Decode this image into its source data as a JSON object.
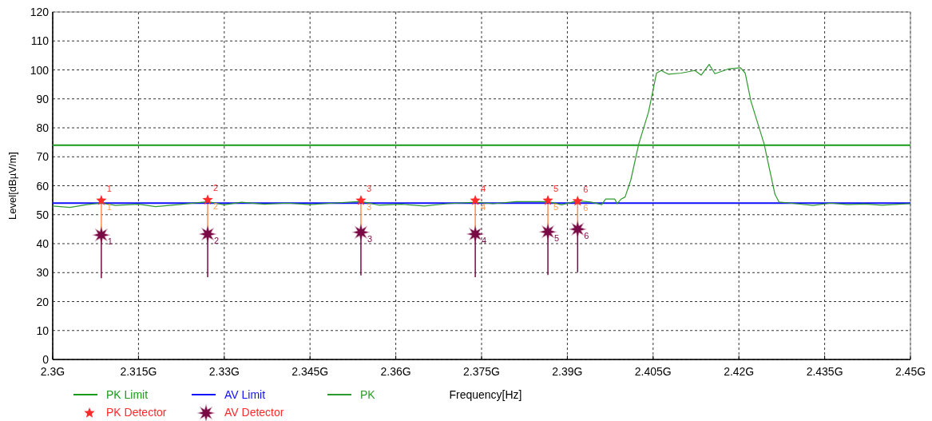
{
  "chart_data": {
    "type": "line",
    "xlabel": "Frequency[Hz]",
    "ylabel": "Level[dBµV/m]",
    "xlim": [
      2.3,
      2.45
    ],
    "ylim": [
      0,
      120
    ],
    "xticks": [
      {
        "value": 2.3,
        "label": "2.3G"
      },
      {
        "value": 2.315,
        "label": "2.315G"
      },
      {
        "value": 2.33,
        "label": "2.33G"
      },
      {
        "value": 2.345,
        "label": "2.345G"
      },
      {
        "value": 2.36,
        "label": "2.36G"
      },
      {
        "value": 2.375,
        "label": "2.375G"
      },
      {
        "value": 2.39,
        "label": "2.39G"
      },
      {
        "value": 2.405,
        "label": "2.405G"
      },
      {
        "value": 2.42,
        "label": "2.42G"
      },
      {
        "value": 2.435,
        "label": "2.435G"
      },
      {
        "value": 2.45,
        "label": "2.45G"
      }
    ],
    "yticks": [
      0,
      10,
      20,
      30,
      40,
      50,
      60,
      70,
      80,
      90,
      100,
      110,
      120
    ],
    "grid": true,
    "legend": "bottom",
    "series": [
      {
        "name": "PK Limit",
        "color": "#1a9a1a",
        "x": [
          2.3,
          2.45
        ],
        "values": [
          74,
          74
        ]
      },
      {
        "name": "AV Limit",
        "color": "#1010ff",
        "x": [
          2.3,
          2.45
        ],
        "values": [
          54,
          54
        ]
      },
      {
        "name": "PK",
        "color": "#2e9a2e",
        "x": [
          2.3,
          2.303,
          2.306,
          2.3085,
          2.311,
          2.315,
          2.318,
          2.322,
          2.3271,
          2.33,
          2.333,
          2.337,
          2.341,
          2.345,
          2.349,
          2.3539,
          2.357,
          2.361,
          2.365,
          2.369,
          2.3739,
          2.377,
          2.381,
          2.3866,
          2.389,
          2.3918,
          2.3941,
          2.396,
          2.3967,
          2.3983,
          2.3987,
          2.3994,
          2.4001,
          2.4011,
          2.4025,
          2.4042,
          2.4056,
          2.4064,
          2.4077,
          2.4099,
          2.4123,
          2.4134,
          2.4148,
          2.4158,
          2.4183,
          2.4203,
          2.4211,
          2.4221,
          2.4244,
          2.4263,
          2.427,
          2.43,
          2.433,
          2.436,
          2.439,
          2.442,
          2.445,
          2.448,
          2.45
        ],
        "values": [
          53,
          52.5,
          53.5,
          54,
          53.2,
          53.6,
          52.8,
          53.5,
          54.5,
          53.4,
          54.3,
          53.6,
          54,
          53.5,
          54,
          54.6,
          53.3,
          53.6,
          53,
          53.8,
          54.3,
          53.8,
          54.5,
          54.5,
          53.4,
          54.8,
          54.4,
          53.5,
          55.4,
          55.4,
          53.8,
          55.4,
          56.1,
          62,
          74.5,
          85.5,
          98.9,
          99.8,
          98.5,
          98.9,
          99.8,
          98.2,
          101.9,
          98.7,
          100.4,
          100.7,
          98.9,
          89.2,
          74.5,
          57.1,
          54.4,
          53.8,
          53.2,
          54,
          53.5,
          53.7,
          53.3,
          53.6,
          53.8
        ]
      },
      {
        "name": "PK Detector",
        "type": "scatter",
        "marker": "star",
        "color": "#ff2a2a",
        "x": [
          2.3085,
          2.3271,
          2.3539,
          2.3739,
          2.3866,
          2.3918
        ],
        "values": [
          54.9,
          55.1,
          54.9,
          54.9,
          54.9,
          54.7
        ]
      },
      {
        "name": "AV Detector",
        "type": "scatter",
        "marker": "star",
        "color": "#7a0a45",
        "x": [
          2.3085,
          2.3271,
          2.3539,
          2.3739,
          2.3866,
          2.3918
        ],
        "values": [
          43.0,
          43.3,
          43.9,
          43.3,
          44.1,
          45.0
        ]
      }
    ],
    "annotations": [
      {
        "text": "1",
        "x": 2.3085,
        "y": 54.9
      },
      {
        "text": "2",
        "x": 2.3271,
        "y": 55.1
      },
      {
        "text": "3",
        "x": 2.3539,
        "y": 54.9
      },
      {
        "text": "4",
        "x": 2.3739,
        "y": 54.9
      },
      {
        "text": "5",
        "x": 2.3866,
        "y": 54.9
      },
      {
        "text": "6",
        "x": 2.3918,
        "y": 54.7
      },
      {
        "text": "1",
        "x": 2.3085,
        "y": 54.9
      },
      {
        "text": "2",
        "x": 2.3271,
        "y": 55.1
      },
      {
        "text": "3",
        "x": 2.3539,
        "y": 54.9
      },
      {
        "text": "4",
        "x": 2.3739,
        "y": 54.9
      },
      {
        "text": "5",
        "x": 2.3866,
        "y": 54.9
      },
      {
        "text": "6",
        "x": 2.3918,
        "y": 54.7
      },
      {
        "text": "1",
        "x": 2.3085,
        "y": 43.0
      },
      {
        "text": "2",
        "x": 2.3271,
        "y": 43.3
      },
      {
        "text": "3",
        "x": 2.3539,
        "y": 43.9
      },
      {
        "text": "4",
        "x": 2.3739,
        "y": 43.3
      },
      {
        "text": "5",
        "x": 2.3866,
        "y": 44.1
      },
      {
        "text": "6",
        "x": 2.3918,
        "y": 45.0
      }
    ]
  }
}
